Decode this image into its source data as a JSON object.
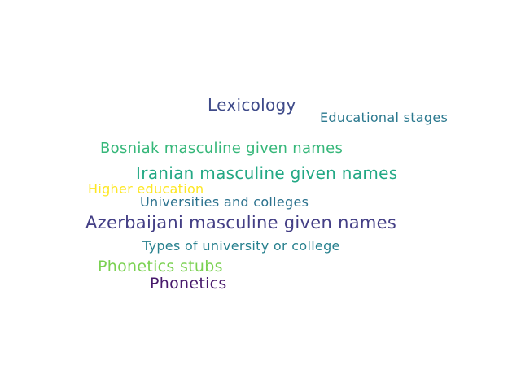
{
  "words": [
    {
      "text": "Lexicology",
      "color": "#3e4a89"
    },
    {
      "text": "Educational stages",
      "color": "#2a788e"
    },
    {
      "text": "Bosniak masculine given names",
      "color": "#35b779"
    },
    {
      "text": "Iranian masculine given names",
      "color": "#22a884"
    },
    {
      "text": "Higher education",
      "color": "#fde725"
    },
    {
      "text": "Universities and colleges",
      "color": "#2c728e"
    },
    {
      "text": "Azerbaijani masculine given names",
      "color": "#433e85"
    },
    {
      "text": "Types of university or college",
      "color": "#27808e"
    },
    {
      "text": "Phonetics stubs",
      "color": "#7ad151"
    },
    {
      "text": "Phonetics",
      "color": "#481a6c"
    }
  ]
}
